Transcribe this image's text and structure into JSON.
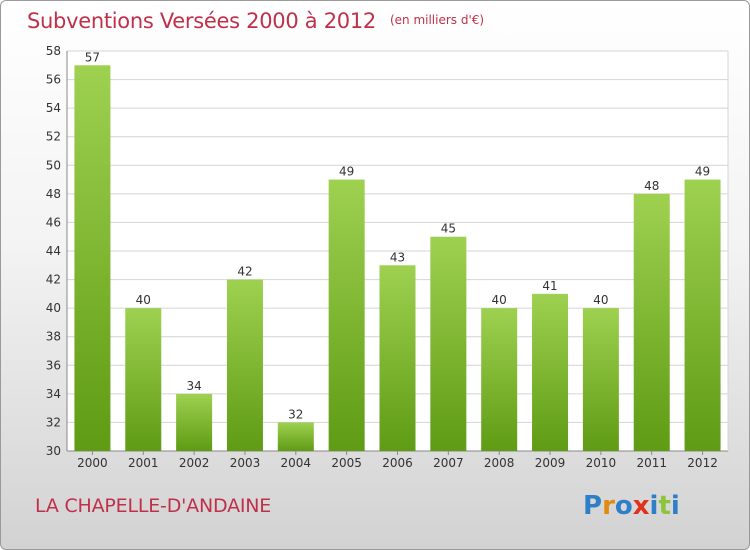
{
  "header": {
    "title": "Subventions Versées 2000 à 2012",
    "subtitle": "(en milliers d'€)"
  },
  "footer": {
    "commune": "LA CHAPELLE-D'ANDAINE",
    "logo_text": "Proxiti"
  },
  "colors": {
    "title": "#c0304a",
    "bar_top": "#9ed150",
    "bar_bottom": "#5f9b14",
    "logo_letters": [
      "#2f7fc8",
      "#e08a10",
      "#2f7fc8",
      "#e0301e",
      "#2f7fc8",
      "#8cc43a",
      "#2f7fc8"
    ]
  },
  "chart_data": {
    "type": "bar",
    "categories": [
      "2000",
      "2001",
      "2002",
      "2003",
      "2004",
      "2005",
      "2006",
      "2007",
      "2008",
      "2009",
      "2010",
      "2011",
      "2012"
    ],
    "values": [
      57,
      40,
      34,
      42,
      32,
      49,
      43,
      45,
      40,
      41,
      40,
      48,
      49
    ],
    "ylim": [
      30,
      58
    ],
    "yticks": [
      30,
      32,
      34,
      36,
      38,
      40,
      42,
      44,
      46,
      48,
      50,
      52,
      54,
      56,
      58
    ],
    "grid": true,
    "xlabel": "",
    "ylabel": ""
  }
}
